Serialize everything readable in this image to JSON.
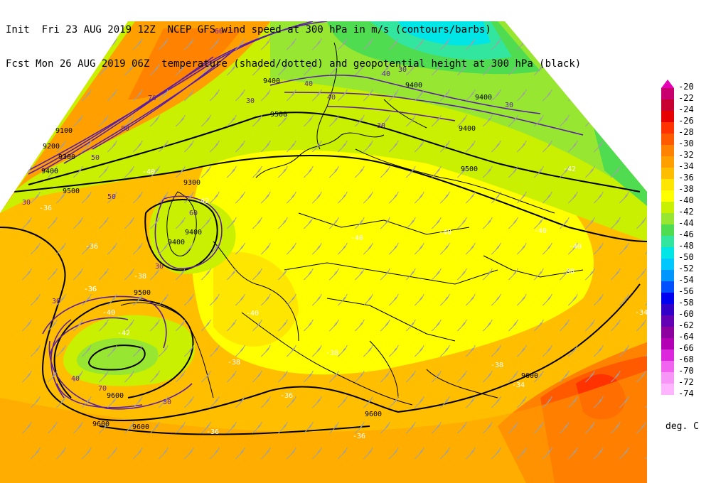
{
  "header": {
    "init_label": "Init",
    "init_time": "Fri 23 AUG 2019 12Z",
    "title_line1": "NCEP GFS wind speed at 300 hPa in m/s (contours/barbs)",
    "fcst_label": "Fcst",
    "fcst_time": "Mon 26 AUG 2019 06Z",
    "title_line2": "temperature (shaded/dotted) and geopotential height at 300 hPa (black)"
  },
  "colorbar": {
    "units": "deg. C",
    "levels": [
      {
        "label": "-20",
        "color": "#e600b4"
      },
      {
        "label": "-22",
        "color": "#c8006e"
      },
      {
        "label": "-24",
        "color": "#c80032"
      },
      {
        "label": "-26",
        "color": "#e60000"
      },
      {
        "label": "-28",
        "color": "#ff3200"
      },
      {
        "label": "-30",
        "color": "#ff5a00"
      },
      {
        "label": "-32",
        "color": "#ff8200"
      },
      {
        "label": "-34",
        "color": "#ffa000"
      },
      {
        "label": "-36",
        "color": "#ffbe00"
      },
      {
        "label": "-38",
        "color": "#ffe600"
      },
      {
        "label": "-40",
        "color": "#ffff00"
      },
      {
        "label": "-42",
        "color": "#c8f000"
      },
      {
        "label": "-44",
        "color": "#96e632"
      },
      {
        "label": "-46",
        "color": "#50dc50"
      },
      {
        "label": "-48",
        "color": "#32e6a0"
      },
      {
        "label": "-50",
        "color": "#00e6e6"
      },
      {
        "label": "-52",
        "color": "#00c8ff"
      },
      {
        "label": "-54",
        "color": "#0096ff"
      },
      {
        "label": "-56",
        "color": "#0050ff"
      },
      {
        "label": "-58",
        "color": "#0000f0"
      },
      {
        "label": "-60",
        "color": "#3200c8"
      },
      {
        "label": "-62",
        "color": "#6400b4"
      },
      {
        "label": "-64",
        "color": "#8c00a0"
      },
      {
        "label": "-66",
        "color": "#b400b4"
      },
      {
        "label": "-68",
        "color": "#dc28dc"
      },
      {
        "label": "-70",
        "color": "#f064f0"
      },
      {
        "label": "-72",
        "color": "#f896f8"
      },
      {
        "label": "-74",
        "color": "#ffb4ff"
      }
    ]
  },
  "map_labels": {
    "height": [
      "9400",
      "9500",
      "9400",
      "9500",
      "9600",
      "9400",
      "9500",
      "9600",
      "9600",
      "9600",
      "9200",
      "9300",
      "9100",
      "9300",
      "9400",
      "9400",
      "9400",
      "9500",
      "9600",
      "9400"
    ],
    "temperature": [
      "-40",
      "-40",
      "-40",
      "-40",
      "-40",
      "-42",
      "-36",
      "-36",
      "-38",
      "-38",
      "-38",
      "-36",
      "-36",
      "-34",
      "-34",
      "-42",
      "-40",
      "-38",
      "-36",
      "-38",
      "-42",
      "-40",
      "-36",
      "-36"
    ],
    "wind": [
      "60",
      "70",
      "80",
      "50",
      "40",
      "30",
      "40",
      "30",
      "30",
      "30",
      "30",
      "40",
      "30",
      "30",
      "40",
      "50",
      "60",
      "70",
      "30"
    ]
  }
}
